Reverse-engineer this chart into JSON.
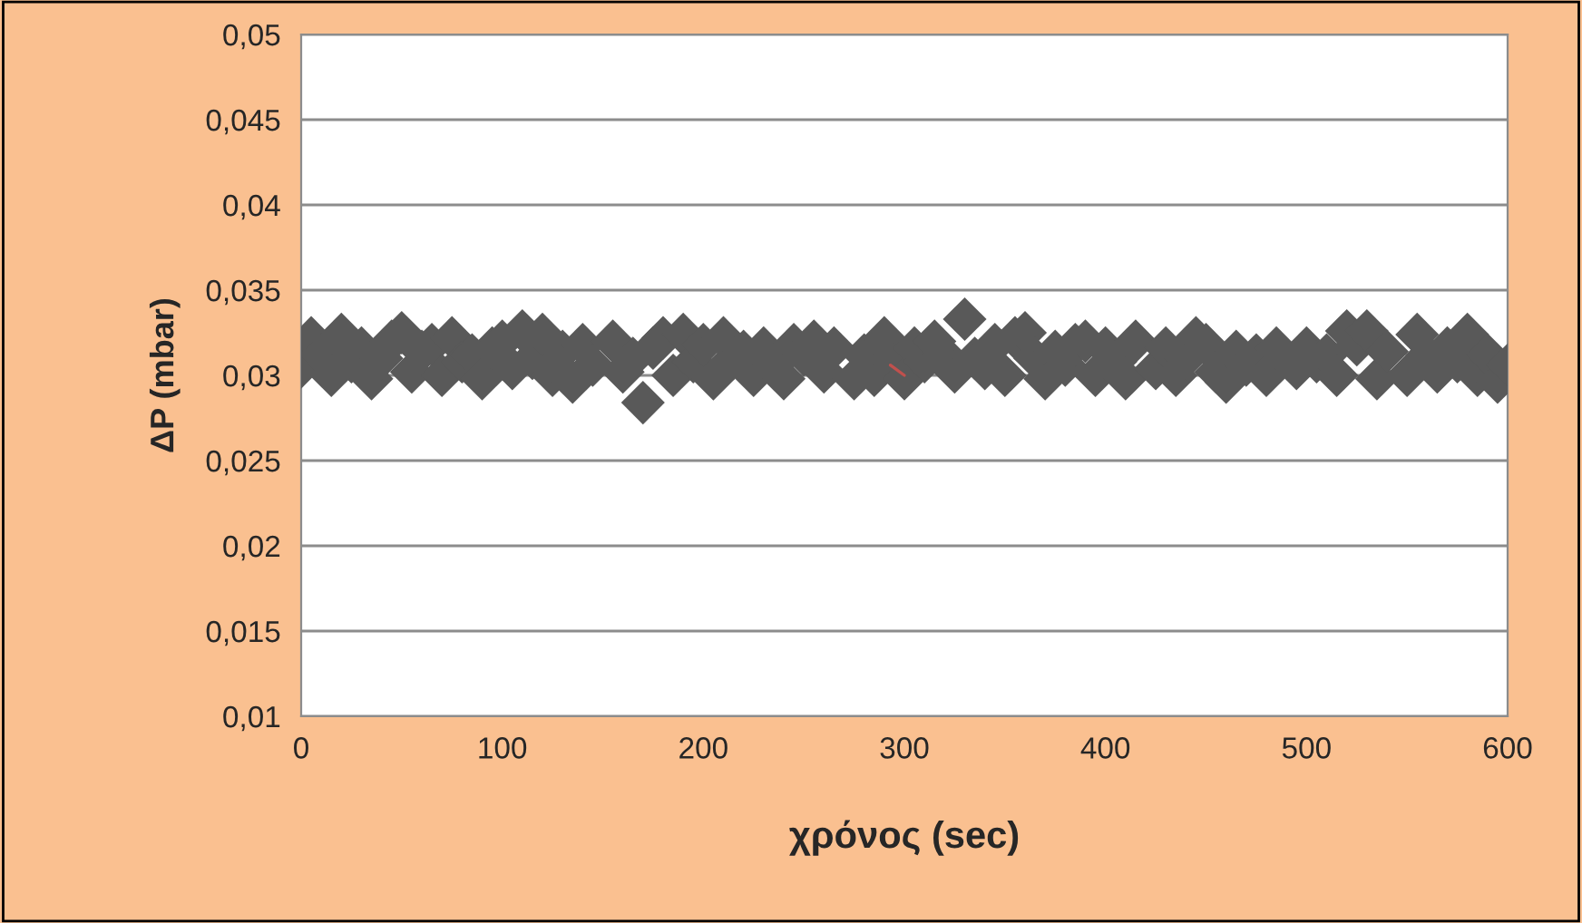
{
  "chart_data": {
    "type": "scatter",
    "xlabel": "χρόνος (sec)",
    "ylabel": "ΔP (mbar)",
    "grid": "y",
    "legend": false,
    "xlim": [
      0,
      600
    ],
    "xticks": [
      0,
      100,
      200,
      300,
      400,
      500,
      600
    ],
    "ylim": [
      0.01,
      0.05
    ],
    "yticks": [
      {
        "value": 0.01,
        "label": "0,01"
      },
      {
        "value": 0.015,
        "label": "0,015"
      },
      {
        "value": 0.02,
        "label": "0,02"
      },
      {
        "value": 0.025,
        "label": "0,025"
      },
      {
        "value": 0.03,
        "label": "0,03"
      },
      {
        "value": 0.035,
        "label": "0,035"
      },
      {
        "value": 0.04,
        "label": "0,04"
      },
      {
        "value": 0.045,
        "label": "0,045"
      },
      {
        "value": 0.05,
        "label": "0,05"
      }
    ],
    "series": [
      {
        "marker": "diamond",
        "color": "#595959",
        "x": [
          0,
          5,
          10,
          15,
          20,
          25,
          30,
          35,
          40,
          45,
          50,
          55,
          60,
          65,
          70,
          75,
          80,
          85,
          90,
          95,
          100,
          105,
          110,
          115,
          120,
          125,
          130,
          135,
          140,
          145,
          155,
          160,
          165,
          170,
          175,
          180,
          185,
          190,
          195,
          200,
          205,
          210,
          215,
          220,
          225,
          230,
          235,
          240,
          245,
          250,
          255,
          260,
          265,
          275,
          280,
          285,
          290,
          295,
          300,
          305,
          310,
          315,
          320,
          325,
          330,
          335,
          340,
          345,
          350,
          355,
          360,
          365,
          370,
          375,
          380,
          385,
          390,
          395,
          400,
          405,
          410,
          415,
          425,
          430,
          435,
          440,
          445,
          450,
          455,
          460,
          465,
          470,
          475,
          480,
          485,
          495,
          500,
          505,
          510,
          515,
          520,
          525,
          530,
          535,
          540,
          550,
          555,
          560,
          565,
          570,
          575,
          580,
          585,
          590,
          595,
          600
        ],
        "values": [
          0.0305,
          0.0322,
          0.0312,
          0.03,
          0.0324,
          0.0308,
          0.0316,
          0.0298,
          0.031,
          0.032,
          0.0325,
          0.0302,
          0.0314,
          0.0318,
          0.03,
          0.0322,
          0.0308,
          0.0312,
          0.0298,
          0.0316,
          0.032,
          0.0304,
          0.0326,
          0.031,
          0.0324,
          0.03,
          0.0314,
          0.0296,
          0.0318,
          0.0306,
          0.032,
          0.0302,
          0.031,
          0.0284,
          0.0316,
          0.0322,
          0.03,
          0.0324,
          0.0308,
          0.0318,
          0.0298,
          0.0322,
          0.031,
          0.0314,
          0.03,
          0.0316,
          0.0306,
          0.0298,
          0.0318,
          0.0312,
          0.032,
          0.0302,
          0.0316,
          0.0298,
          0.0312,
          0.03,
          0.0322,
          0.0306,
          0.0298,
          0.0316,
          0.0308,
          0.032,
          0.0312,
          0.0302,
          0.0333,
          0.031,
          0.0304,
          0.0318,
          0.03,
          0.0322,
          0.0325,
          0.031,
          0.0298,
          0.0314,
          0.0306,
          0.0318,
          0.032,
          0.03,
          0.0316,
          0.0308,
          0.0298,
          0.032,
          0.0304,
          0.0316,
          0.03,
          0.031,
          0.0322,
          0.0318,
          0.0302,
          0.0296,
          0.0314,
          0.0306,
          0.0312,
          0.03,
          0.0316,
          0.0304,
          0.0316,
          0.0308,
          0.0312,
          0.03,
          0.0326,
          0.0318,
          0.0326,
          0.0298,
          0.0314,
          0.03,
          0.0324,
          0.0312,
          0.0302,
          0.0316,
          0.0308,
          0.0324,
          0.03,
          0.0312,
          0.0296,
          0.0306
        ]
      },
      {
        "type": "line",
        "color": "#c0504d",
        "x": [
          293,
          300
        ],
        "values": [
          0.0306,
          0.03
        ]
      }
    ]
  }
}
